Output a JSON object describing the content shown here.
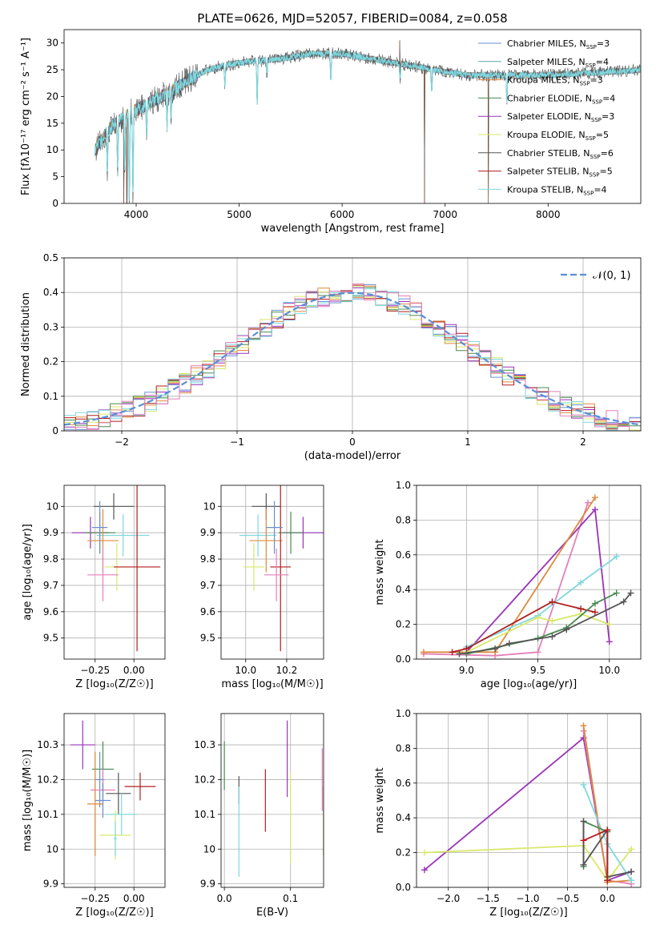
{
  "title": "PLATE=0626, MJD=52057, FIBERID=0084, z=0.058",
  "colors": {
    "chabrier_miles": "#6a8fd0",
    "salpeter_miles": "#5fa8a6",
    "kroupa_miles": "#dd8a3c",
    "chabrier_elodie": "#4a8a52",
    "salpeter_elodie": "#9a33b8",
    "kroupa_elodie": "#d8e86a",
    "chabrier_stelib": "#555555",
    "salpeter_stelib": "#b01e1e",
    "kroupa_stelib": "#7fd8df",
    "pink": "#e37fb9",
    "normal": "#5b8fd6"
  },
  "chart_data": [
    {
      "id": "spectrum",
      "type": "line",
      "xlabel": "wavelength [Angstrom, rest frame]",
      "ylabel": "Flux [fλ10⁻¹⁷ erg cm⁻² s⁻¹ A⁻¹]",
      "xlim": [
        3300,
        8900
      ],
      "ylim": [
        0,
        32.5
      ],
      "xticks": [
        4000,
        5000,
        6000,
        7000,
        8000
      ],
      "yticks": [
        0,
        5,
        10,
        15,
        20,
        25,
        30
      ],
      "legend_position": "upper-right",
      "legend": [
        {
          "label": "Chabrier MILES, N",
          "sub": "SSP",
          "tail": "=3",
          "color_key": "chabrier_miles"
        },
        {
          "label": "Salpeter MILES, N",
          "sub": "SSP",
          "tail": "=4",
          "color_key": "salpeter_miles"
        },
        {
          "label": "Kroupa MILES, N",
          "sub": "SSP",
          "tail": "=3",
          "color_key": "kroupa_miles"
        },
        {
          "label": "Chabrier ELODIE, N",
          "sub": "SSP",
          "tail": "=4",
          "color_key": "chabrier_elodie"
        },
        {
          "label": "Salpeter ELODIE, N",
          "sub": "SSP",
          "tail": "=3",
          "color_key": "salpeter_elodie"
        },
        {
          "label": "Kroupa ELODIE, N",
          "sub": "SSP",
          "tail": "=5",
          "color_key": "kroupa_elodie"
        },
        {
          "label": "Chabrier STELIB, N",
          "sub": "SSP",
          "tail": "=6",
          "color_key": "chabrier_stelib"
        },
        {
          "label": "Salpeter STELIB, N",
          "sub": "SSP",
          "tail": "=5",
          "color_key": "salpeter_stelib"
        },
        {
          "label": "Kroupa STELIB, N",
          "sub": "SSP",
          "tail": "=4",
          "color_key": "kroupa_stelib"
        }
      ],
      "continuum": [
        [
          3600,
          10
        ],
        [
          3700,
          13
        ],
        [
          3800,
          15
        ],
        [
          3950,
          17
        ],
        [
          4100,
          18.5
        ],
        [
          4300,
          20.5
        ],
        [
          4500,
          23
        ],
        [
          4700,
          25
        ],
        [
          4900,
          26
        ],
        [
          5100,
          26.5
        ],
        [
          5400,
          27
        ],
        [
          5700,
          28
        ],
        [
          6000,
          28
        ],
        [
          6300,
          27
        ],
        [
          6600,
          26
        ],
        [
          6900,
          25
        ],
        [
          7200,
          24
        ],
        [
          7500,
          24
        ],
        [
          8000,
          24
        ],
        [
          8500,
          24.5
        ],
        [
          8900,
          25
        ]
      ],
      "absorption": [
        [
          3720,
          7
        ],
        [
          3820,
          9
        ],
        [
          3890,
          10
        ],
        [
          3933,
          16
        ],
        [
          3969,
          16
        ],
        [
          4102,
          6
        ],
        [
          4300,
          6
        ],
        [
          4340,
          5
        ],
        [
          4861,
          4
        ],
        [
          5175,
          8
        ],
        [
          5270,
          3
        ],
        [
          5890,
          5
        ],
        [
          6563,
          3
        ],
        [
          6870,
          4
        ],
        [
          7600,
          5
        ]
      ],
      "spikes": [
        [
          3880,
          0
        ],
        [
          3910,
          0
        ],
        [
          6800,
          0
        ],
        [
          7420,
          0
        ],
        [
          6560,
          30.5
        ]
      ]
    },
    {
      "id": "residuals",
      "type": "histogram",
      "xlabel": "(data-model)/error",
      "ylabel": "Normed distribution",
      "xlim": [
        -2.5,
        2.5
      ],
      "ylim": [
        0,
        0.5
      ],
      "xticks": [
        -2,
        -1,
        0,
        1,
        2
      ],
      "yticks": [
        0,
        0.1,
        0.2,
        0.3,
        0.4,
        0.5
      ],
      "legend": [
        {
          "label": "𝒩(0, 1)",
          "color_key": "normal"
        }
      ],
      "bin_width": 0.1,
      "series_color_keys": [
        "chabrier_miles",
        "salpeter_elodie",
        "kroupa_miles",
        "kroupa_elodie",
        "chabrier_elodie",
        "salpeter_stelib",
        "kroupa_stelib",
        "pink"
      ]
    },
    {
      "id": "age_vs_Z",
      "type": "errorbar",
      "xlabel": "Z [log₁₀(Z/Z☉)]",
      "ylabel": "age  [log₁₀(age/yr)]",
      "xlim": [
        -0.45,
        0.2
      ],
      "ylim": [
        9.42,
        10.08
      ],
      "xticks": [
        -0.25,
        0.0
      ],
      "xticklabels": [
        "−0.25",
        "0.00"
      ],
      "yticks": [
        9.5,
        9.6,
        9.7,
        9.8,
        9.9,
        10.0
      ],
      "points": [
        {
          "x": -0.13,
          "xerr": 0.13,
          "y": 10.0,
          "yerr": 0.05,
          "c": "chabrier_stelib"
        },
        {
          "x": -0.28,
          "xerr": 0.12,
          "y": 9.9,
          "yerr": 0.06,
          "c": "salpeter_elodie"
        },
        {
          "x": -0.22,
          "xerr": 0.1,
          "y": 9.9,
          "yerr": 0.08,
          "c": "chabrier_elodie"
        },
        {
          "x": -0.07,
          "xerr": 0.17,
          "y": 9.89,
          "yerr": 0.08,
          "c": "kroupa_stelib"
        },
        {
          "x": -0.2,
          "xerr": 0.1,
          "y": 9.87,
          "yerr": 0.12,
          "c": "kroupa_miles"
        },
        {
          "x": -0.11,
          "xerr": 0.08,
          "y": 9.77,
          "yerr": 0.09,
          "c": "kroupa_elodie"
        },
        {
          "x": 0.02,
          "xerr": 0.15,
          "y": 9.77,
          "yerr": 0.32,
          "c": "salpeter_stelib"
        },
        {
          "x": -0.2,
          "xerr": 0.1,
          "y": 9.74,
          "yerr": 0.1,
          "c": "pink"
        },
        {
          "x": -0.22,
          "xerr": 0.05,
          "y": 9.92,
          "yerr": 0.1,
          "c": "chabrier_miles"
        }
      ]
    },
    {
      "id": "age_vs_mass",
      "type": "errorbar",
      "xlabel": "mass [log₁₀(M/M☉)]",
      "ylabel": "",
      "xlim": [
        9.88,
        10.38
      ],
      "ylim": [
        9.42,
        10.08
      ],
      "xticks": [
        10.0,
        10.2
      ],
      "xticklabels": [
        "10.0",
        "10.2"
      ],
      "yticks": [
        9.5,
        9.6,
        9.7,
        9.8,
        9.9,
        10.0
      ],
      "points": [
        {
          "x": 10.1,
          "xerr": 0.07,
          "y": 10.0,
          "yerr": 0.05,
          "c": "chabrier_stelib"
        },
        {
          "x": 10.28,
          "xerr": 0.1,
          "y": 9.9,
          "yerr": 0.06,
          "c": "salpeter_elodie"
        },
        {
          "x": 10.22,
          "xerr": 0.06,
          "y": 9.9,
          "yerr": 0.08,
          "c": "chabrier_elodie"
        },
        {
          "x": 10.06,
          "xerr": 0.09,
          "y": 9.89,
          "yerr": 0.08,
          "c": "kroupa_stelib"
        },
        {
          "x": 10.1,
          "xerr": 0.08,
          "y": 9.87,
          "yerr": 0.12,
          "c": "kroupa_miles"
        },
        {
          "x": 10.04,
          "xerr": 0.05,
          "y": 9.77,
          "yerr": 0.09,
          "c": "kroupa_elodie"
        },
        {
          "x": 10.17,
          "xerr": 0.05,
          "y": 9.77,
          "yerr": 0.32,
          "c": "salpeter_stelib"
        },
        {
          "x": 10.15,
          "xerr": 0.06,
          "y": 9.74,
          "yerr": 0.1,
          "c": "pink"
        },
        {
          "x": 10.14,
          "xerr": 0.04,
          "y": 9.92,
          "yerr": 0.1,
          "c": "chabrier_miles"
        }
      ]
    },
    {
      "id": "weight_vs_age",
      "type": "line",
      "xlabel": "age  [log₁₀(age/yr)]",
      "ylabel": "mass weight",
      "xlim": [
        8.65,
        10.22
      ],
      "ylim": [
        0,
        1.0
      ],
      "xticks": [
        9.0,
        9.5,
        10.0
      ],
      "xticklabels": [
        "9.0",
        "9.5",
        "10.0"
      ],
      "yticks": [
        0,
        0.2,
        0.4,
        0.6,
        0.8,
        1.0
      ],
      "yticklabels": [
        "0.0",
        "0.2",
        "0.4",
        "0.6",
        "0.8",
        "1.0"
      ],
      "series": [
        {
          "c": "pink",
          "points": [
            [
              8.7,
              0.03
            ],
            [
              9.2,
              0.02
            ],
            [
              9.5,
              0.04
            ],
            [
              9.85,
              0.9
            ]
          ]
        },
        {
          "c": "salpeter_elodie",
          "points": [
            [
              9.0,
              0.04
            ],
            [
              9.9,
              0.86
            ],
            [
              10.0,
              0.1
            ]
          ]
        },
        {
          "c": "kroupa_miles",
          "points": [
            [
              8.7,
              0.04
            ],
            [
              9.2,
              0.04
            ],
            [
              9.9,
              0.93
            ]
          ]
        },
        {
          "c": "kroupa_stelib",
          "points": [
            [
              9.0,
              0.07
            ],
            [
              9.5,
              0.25
            ],
            [
              9.8,
              0.44
            ],
            [
              10.05,
              0.59
            ]
          ]
        },
        {
          "c": "kroupa_elodie",
          "points": [
            [
              9.0,
              0.04
            ],
            [
              9.5,
              0.24
            ],
            [
              9.6,
              0.22
            ],
            [
              9.8,
              0.26
            ],
            [
              10.0,
              0.2
            ]
          ]
        },
        {
          "c": "salpeter_stelib",
          "points": [
            [
              8.9,
              0.04
            ],
            [
              9.0,
              0.06
            ],
            [
              9.6,
              0.33
            ],
            [
              9.8,
              0.29
            ],
            [
              9.9,
              0.27
            ]
          ]
        },
        {
          "c": "chabrier_elodie",
          "points": [
            [
              9.0,
              0.03
            ],
            [
              9.5,
              0.12
            ],
            [
              9.7,
              0.18
            ],
            [
              9.9,
              0.32
            ],
            [
              10.05,
              0.38
            ]
          ]
        },
        {
          "c": "chabrier_stelib",
          "points": [
            [
              8.95,
              0.03
            ],
            [
              9.2,
              0.06
            ],
            [
              9.3,
              0.09
            ],
            [
              9.6,
              0.13
            ],
            [
              9.7,
              0.17
            ],
            [
              10.1,
              0.33
            ],
            [
              10.15,
              0.38
            ]
          ]
        }
      ]
    },
    {
      "id": "mass_vs_Z",
      "type": "errorbar",
      "xlabel": "Z [log₁₀(Z/Z☉)]",
      "ylabel": "mass [log₁₀(M/M☉)]",
      "xlim": [
        -0.45,
        0.2
      ],
      "ylim": [
        9.89,
        10.39
      ],
      "xticks": [
        -0.25,
        0.0
      ],
      "xticklabels": [
        "−0.25",
        "0.00"
      ],
      "yticks": [
        9.9,
        10.0,
        10.1,
        10.2,
        10.3
      ],
      "points": [
        {
          "x": -0.33,
          "xerr": 0.08,
          "y": 10.3,
          "yerr": 0.07,
          "c": "salpeter_elodie"
        },
        {
          "x": -0.2,
          "xerr": 0.07,
          "y": 10.23,
          "yerr": 0.08,
          "c": "chabrier_elodie"
        },
        {
          "x": -0.22,
          "xerr": 0.03,
          "y": 10.2,
          "yerr": 0.08,
          "c": "chabrier_miles"
        },
        {
          "x": 0.04,
          "xerr": 0.1,
          "y": 10.18,
          "yerr": 0.04,
          "c": "salpeter_stelib"
        },
        {
          "x": -0.2,
          "xerr": 0.08,
          "y": 10.17,
          "yerr": 0.06,
          "c": "pink"
        },
        {
          "x": -0.1,
          "xerr": 0.08,
          "y": 10.16,
          "yerr": 0.06,
          "c": "chabrier_stelib"
        },
        {
          "x": -0.2,
          "xerr": 0.05,
          "y": 10.14,
          "yerr": 0.05,
          "c": "chabrier_miles"
        },
        {
          "x": -0.25,
          "xerr": 0.05,
          "y": 10.13,
          "yerr": 0.15,
          "c": "kroupa_miles"
        },
        {
          "x": -0.08,
          "xerr": 0.1,
          "y": 10.1,
          "yerr": 0.06,
          "c": "kroupa_stelib"
        },
        {
          "x": -0.12,
          "xerr": 0.1,
          "y": 10.04,
          "yerr": 0.07,
          "c": "kroupa_elodie"
        },
        {
          "x": -0.12,
          "xerr": 0.01,
          "y": 10.03,
          "yerr": 0.05,
          "c": "kroupa_stelib"
        }
      ]
    },
    {
      "id": "ebv",
      "type": "errorbar",
      "xlabel": "E(B-V)",
      "ylabel": "",
      "xlim": [
        -0.005,
        0.15
      ],
      "ylim": [
        9.89,
        10.39
      ],
      "xticks": [
        0.0,
        0.1
      ],
      "xticklabels": [
        "0.0",
        "0.1"
      ],
      "yticks": [
        9.9,
        10.0,
        10.1,
        10.2,
        10.3
      ],
      "points": [
        {
          "x": 0.0,
          "y": 10.24,
          "yerr": 0.07,
          "c": "chabrier_elodie"
        },
        {
          "x": 0.022,
          "y": 10.17,
          "yerr": 0.04,
          "c": "chabrier_stelib"
        },
        {
          "x": 0.022,
          "y": 10.05,
          "yerr": 0.13,
          "c": "kroupa_stelib"
        },
        {
          "x": 0.062,
          "y": 10.14,
          "yerr": 0.09,
          "c": "salpeter_stelib"
        },
        {
          "x": 0.095,
          "y": 10.26,
          "yerr": 0.11,
          "c": "salpeter_elodie"
        },
        {
          "x": 0.1,
          "y": 10.09,
          "yerr": 0.13,
          "c": "kroupa_elodie"
        },
        {
          "x": 0.148,
          "y": 10.2,
          "yerr": 0.09,
          "c": "pink"
        },
        {
          "x": 0.15,
          "y": 10.08,
          "yerr": 0.1,
          "c": "kroupa_miles"
        }
      ]
    },
    {
      "id": "weight_vs_Z",
      "type": "line",
      "xlabel": "Z [log₁₀(Z/Z☉)]",
      "ylabel": "mass weight",
      "xlim": [
        -2.4,
        0.42
      ],
      "ylim": [
        0,
        1.0
      ],
      "xticks": [
        -2.0,
        -1.5,
        -1.0,
        -0.5,
        0.0
      ],
      "xticklabels": [
        "−2.0",
        "−1.5",
        "−1.0",
        "−0.5",
        "0.0"
      ],
      "yticks": [
        0,
        0.2,
        0.4,
        0.6,
        0.8,
        1.0
      ],
      "yticklabels": [
        "0.0",
        "0.2",
        "0.4",
        "0.6",
        "0.8",
        "1.0"
      ],
      "series": [
        {
          "c": "salpeter_elodie",
          "points": [
            [
              -2.3,
              0.1
            ],
            [
              -0.3,
              0.86
            ],
            [
              0.0,
              0.04
            ],
            [
              0.3,
              0.09
            ]
          ]
        },
        {
          "c": "pink",
          "points": [
            [
              -0.3,
              0.9
            ],
            [
              0.0,
              0.04
            ],
            [
              0.3,
              0.02
            ]
          ]
        },
        {
          "c": "kroupa_miles",
          "points": [
            [
              -0.3,
              0.93
            ],
            [
              0.0,
              0.03
            ],
            [
              0.3,
              0.04
            ]
          ]
        },
        {
          "c": "kroupa_elodie",
          "points": [
            [
              -2.3,
              0.2
            ],
            [
              -0.3,
              0.24
            ],
            [
              0.0,
              0.04
            ],
            [
              0.3,
              0.22
            ]
          ]
        },
        {
          "c": "kroupa_stelib",
          "points": [
            [
              -0.3,
              0.59
            ],
            [
              0.0,
              0.25
            ],
            [
              0.3,
              0.04
            ]
          ]
        },
        {
          "c": "chabrier_elodie",
          "points": [
            [
              -0.3,
              0.12
            ],
            [
              -0.3,
              0.38
            ],
            [
              0.0,
              0.32
            ],
            [
              0.0,
              0.04
            ]
          ]
        },
        {
          "c": "chabrier_stelib",
          "points": [
            [
              -0.3,
              0.38
            ],
            [
              -0.3,
              0.13
            ],
            [
              0.0,
              0.33
            ],
            [
              0.0,
              0.06
            ],
            [
              0.3,
              0.09
            ]
          ]
        },
        {
          "c": "salpeter_stelib",
          "points": [
            [
              -0.3,
              0.27
            ],
            [
              0.0,
              0.33
            ],
            [
              0.0,
              0.04
            ]
          ]
        }
      ]
    }
  ]
}
